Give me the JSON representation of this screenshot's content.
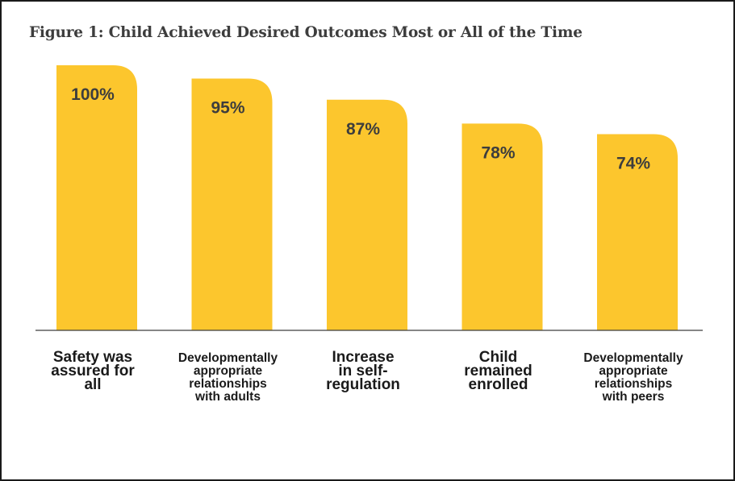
{
  "title": "Figure 1: Child Achieved Desired Outcomes Most or All of the Time",
  "colors": {
    "bar": "#fcc62d",
    "text": "#3d3d3d",
    "category_text": "#1a1a1a"
  },
  "chart_data": {
    "type": "bar",
    "title": "Figure 1: Child Achieved Desired Outcomes Most or All of the Time",
    "categories": [
      "Safety was assured for all",
      "Developmentally appropriate relationships with adults",
      "Increase in self-regulation",
      "Child remained enrolled",
      "Developmentally appropriate relationships with peers"
    ],
    "category_lines": [
      [
        "Safety was",
        "assured for",
        "all"
      ],
      [
        "Developmentally",
        "appropriate",
        "relationships",
        "with adults"
      ],
      [
        "Increase",
        "in self-",
        "regulation"
      ],
      [
        "Child",
        "remained",
        "enrolled"
      ],
      [
        "Developmentally",
        "appropriate",
        "relationships",
        "with peers"
      ]
    ],
    "values": [
      100,
      95,
      87,
      78,
      74
    ],
    "value_labels": [
      "100%",
      "95%",
      "87%",
      "78%",
      "74%"
    ],
    "ylim": [
      0,
      100
    ],
    "xlabel": "",
    "ylabel": "",
    "grid": false,
    "legend": "none"
  }
}
